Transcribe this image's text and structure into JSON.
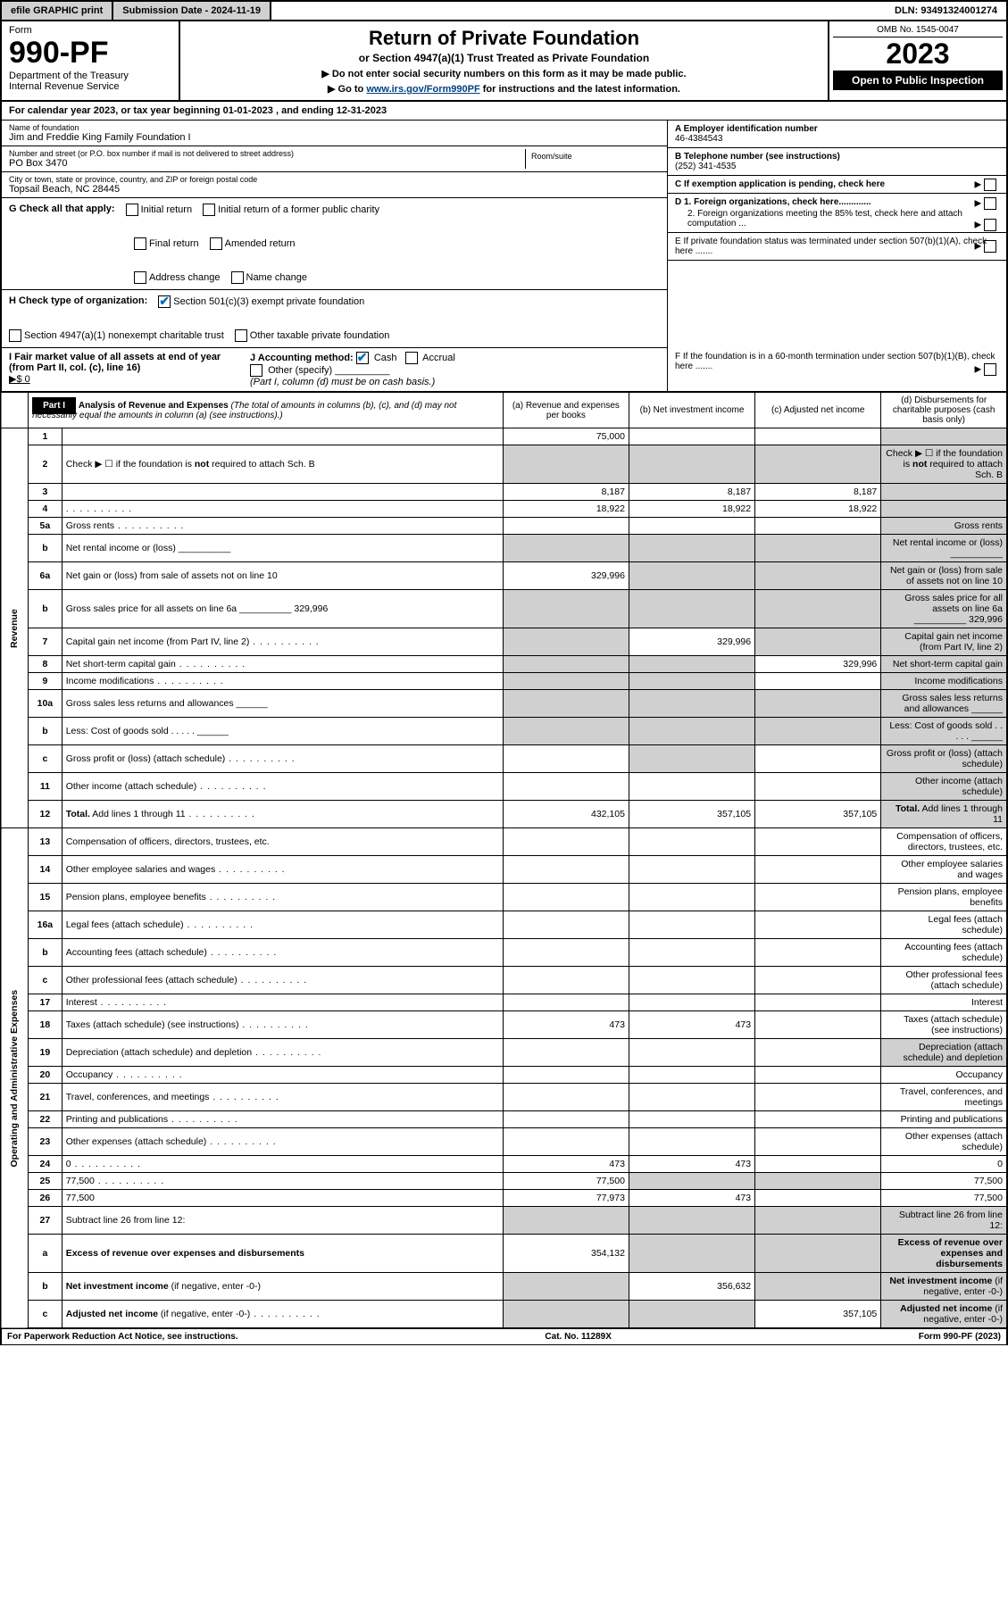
{
  "topbar": {
    "efile": "efile GRAPHIC print",
    "submission": "Submission Date - 2024-11-19",
    "dln": "DLN: 93491324001274"
  },
  "header": {
    "form_label": "Form",
    "form_num": "990-PF",
    "dept": "Department of the Treasury",
    "irs": "Internal Revenue Service",
    "title": "Return of Private Foundation",
    "subtitle": "or Section 4947(a)(1) Trust Treated as Private Foundation",
    "instr1": "▶ Do not enter social security numbers on this form as it may be made public.",
    "instr2_pre": "▶ Go to ",
    "instr2_link": "www.irs.gov/Form990PF",
    "instr2_post": " for instructions and the latest information.",
    "omb": "OMB No. 1545-0047",
    "year": "2023",
    "open": "Open to Public Inspection"
  },
  "calendar": "For calendar year 2023, or tax year beginning 01-01-2023                         , and ending 12-31-2023",
  "entity": {
    "name_lbl": "Name of foundation",
    "name": "Jim and Freddie King Family Foundation I",
    "addr_lbl": "Number and street (or P.O. box number if mail is not delivered to street address)",
    "addr": "PO Box 3470",
    "room_lbl": "Room/suite",
    "city_lbl": "City or town, state or province, country, and ZIP or foreign postal code",
    "city": "Topsail Beach, NC  28445",
    "ein_lbl": "A Employer identification number",
    "ein": "46-4384543",
    "phone_lbl": "B Telephone number (see instructions)",
    "phone": "(252) 341-4535",
    "c_lbl": "C If exemption application is pending, check here",
    "d1": "D 1. Foreign organizations, check here.............",
    "d2": "2. Foreign organizations meeting the 85% test, check here and attach computation ...",
    "e_lbl": "E  If private foundation status was terminated under section 507(b)(1)(A), check here .......",
    "f_lbl": "F  If the foundation is in a 60-month termination under section 507(b)(1)(B), check here .......",
    "g_lbl": "G Check all that apply:",
    "g_opts": [
      "Initial return",
      "Final return",
      "Address change",
      "Initial return of a former public charity",
      "Amended return",
      "Name change"
    ],
    "h_lbl": "H Check type of organization:",
    "h1": "Section 501(c)(3) exempt private foundation",
    "h2": "Section 4947(a)(1) nonexempt charitable trust",
    "h3": "Other taxable private foundation",
    "i_lbl": "I Fair market value of all assets at end of year (from Part II, col. (c), line 16)",
    "i_val": "▶$  0",
    "j_lbl": "J Accounting method:",
    "j_cash": "Cash",
    "j_accrual": "Accrual",
    "j_other": "Other (specify)",
    "j_note": "(Part I, column (d) must be on cash basis.)"
  },
  "part1": {
    "tag": "Part I",
    "title": "Analysis of Revenue and Expenses",
    "note": "(The total of amounts in columns (b), (c), and (d) may not necessarily equal the amounts in column (a) (see instructions).)",
    "cols": {
      "a": "(a)    Revenue and expenses per books",
      "b": "(b)   Net investment income",
      "c": "(c)  Adjusted net income",
      "d": "(d)  Disbursements for charitable purposes (cash basis only)"
    },
    "side": {
      "rev": "Revenue",
      "exp": "Operating and Administrative Expenses"
    }
  },
  "rows": [
    {
      "n": "1",
      "d": "",
      "a": "75,000",
      "b": "",
      "c": "",
      "d_shade": true
    },
    {
      "n": "2",
      "d": "Check ▶ ☐ if the foundation is <b>not</b> required to attach Sch. B",
      "allshade": true,
      "dotsafter": true
    },
    {
      "n": "3",
      "d": "",
      "a": "8,187",
      "b": "8,187",
      "c": "8,187",
      "d_shade": true
    },
    {
      "n": "4",
      "d": "",
      "a": "18,922",
      "b": "18,922",
      "c": "18,922",
      "d_shade": true,
      "dots": true
    },
    {
      "n": "5a",
      "d": "Gross rents",
      "dots": true,
      "d_shade": true
    },
    {
      "n": "b",
      "d": "Net rental income or (loss)  __________",
      "allshade": true
    },
    {
      "n": "6a",
      "d": "Net gain or (loss) from sale of assets not on line 10",
      "a": "329,996",
      "b_shade": true,
      "c_shade": true,
      "d_shade": true
    },
    {
      "n": "b",
      "d": "Gross sales price for all assets on line 6a __________ 329,996",
      "allshade": true
    },
    {
      "n": "7",
      "d": "Capital gain net income (from Part IV, line 2)",
      "a_shade": true,
      "b": "329,996",
      "c_shade": true,
      "d_shade": true,
      "dots": true
    },
    {
      "n": "8",
      "d": "Net short-term capital gain",
      "a_shade": true,
      "b_shade": true,
      "c": "329,996",
      "d_shade": true,
      "dots": true
    },
    {
      "n": "9",
      "d": "Income modifications",
      "a_shade": true,
      "b_shade": true,
      "d_shade": true,
      "dots": true
    },
    {
      "n": "10a",
      "d": "Gross sales less returns and allowances  ______",
      "allshade": true
    },
    {
      "n": "b",
      "d": "Less: Cost of goods sold   .  .  .  .  .  ______",
      "allshade": true
    },
    {
      "n": "c",
      "d": "Gross profit or (loss) (attach schedule)",
      "b_shade": true,
      "d_shade": true,
      "dots": true
    },
    {
      "n": "11",
      "d": "Other income (attach schedule)",
      "d_shade": true,
      "dots": true
    },
    {
      "n": "12",
      "d": "<b>Total.</b> Add lines 1 through 11",
      "a": "432,105",
      "b": "357,105",
      "c": "357,105",
      "d_shade": true,
      "dots": true
    },
    {
      "n": "13",
      "d": "Compensation of officers, directors, trustees, etc.",
      "sec": "exp"
    },
    {
      "n": "14",
      "d": "Other employee salaries and wages",
      "dots": true
    },
    {
      "n": "15",
      "d": "Pension plans, employee benefits",
      "dots": true
    },
    {
      "n": "16a",
      "d": "Legal fees (attach schedule)",
      "dots": true
    },
    {
      "n": "b",
      "d": "Accounting fees (attach schedule)",
      "dots": true
    },
    {
      "n": "c",
      "d": "Other professional fees (attach schedule)",
      "dots": true
    },
    {
      "n": "17",
      "d": "Interest",
      "dots": true
    },
    {
      "n": "18",
      "d": "Taxes (attach schedule) (see instructions)",
      "a": "473",
      "b": "473",
      "dots": true
    },
    {
      "n": "19",
      "d": "Depreciation (attach schedule) and depletion",
      "d_shade": true,
      "dots": true
    },
    {
      "n": "20",
      "d": "Occupancy",
      "dots": true
    },
    {
      "n": "21",
      "d": "Travel, conferences, and meetings",
      "dots": true
    },
    {
      "n": "22",
      "d": "Printing and publications",
      "dots": true
    },
    {
      "n": "23",
      "d": "Other expenses (attach schedule)",
      "dots": true
    },
    {
      "n": "24",
      "d": "0",
      "a": "473",
      "b": "473",
      "c": "",
      "dots": true
    },
    {
      "n": "25",
      "d": "77,500",
      "a": "77,500",
      "b_shade": true,
      "c_shade": true,
      "dots": true
    },
    {
      "n": "26",
      "d": "77,500",
      "a": "77,973",
      "b": "473",
      "c": ""
    },
    {
      "n": "27",
      "d": "Subtract line 26 from line 12:",
      "allshade": true
    },
    {
      "n": "a",
      "d": "<b>Excess of revenue over expenses and disbursements</b>",
      "a": "354,132",
      "b_shade": true,
      "c_shade": true,
      "d_shade": true
    },
    {
      "n": "b",
      "d": "<b>Net investment income</b> (if negative, enter -0-)",
      "a_shade": true,
      "b": "356,632",
      "c_shade": true,
      "d_shade": true
    },
    {
      "n": "c",
      "d": "<b>Adjusted net income</b> (if negative, enter -0-)",
      "a_shade": true,
      "b_shade": true,
      "c": "357,105",
      "d_shade": true,
      "dots": true
    }
  ],
  "footer": {
    "left": "For Paperwork Reduction Act Notice, see instructions.",
    "mid": "Cat. No. 11289X",
    "right": "Form 990-PF (2023)"
  }
}
